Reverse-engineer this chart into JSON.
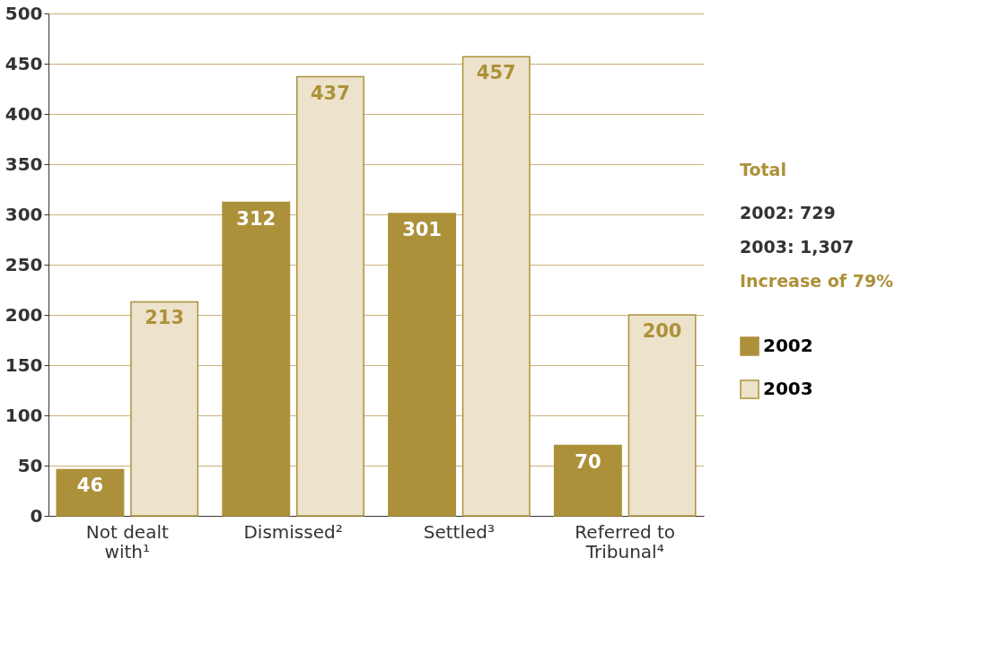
{
  "chart_data": {
    "type": "bar",
    "categories": [
      "Not dealt with¹",
      "Dismissed²",
      "Settled³",
      "Referred to Tribunal⁴"
    ],
    "series": [
      {
        "name": "2002",
        "color": "#ad913a",
        "values": [
          46,
          312,
          301,
          70
        ]
      },
      {
        "name": "2003",
        "color": "#ede3cc",
        "values": [
          213,
          437,
          457,
          200
        ]
      }
    ],
    "ylim": [
      0,
      500
    ],
    "yticks": [
      0,
      50,
      100,
      150,
      200,
      250,
      300,
      350,
      400,
      450,
      500
    ],
    "grid": "y",
    "legend": "right",
    "data_labels": true,
    "annotations": [
      "Total",
      "2002: 729",
      "2003: 1,307",
      "Increase of 79%"
    ]
  }
}
